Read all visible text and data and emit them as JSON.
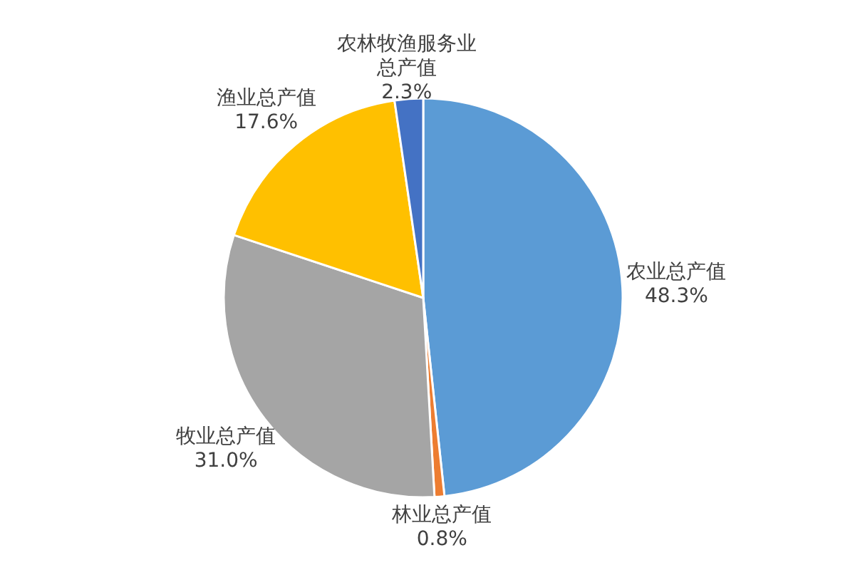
{
  "chart_data": {
    "type": "pie",
    "categories": [
      "农业总产值",
      "林业总产值",
      "牧业总产值",
      "渔业总产值",
      "农林牧渔服务业总产值"
    ],
    "values": [
      48.3,
      0.8,
      31.0,
      17.6,
      2.3
    ],
    "value_labels": [
      "48.3%",
      "0.8%",
      "31.0%",
      "17.6%",
      "2.3%"
    ],
    "colors": [
      "#5b9bd5",
      "#ed7d31",
      "#a5a5a5",
      "#ffc000",
      "#4472c4"
    ],
    "legend": false
  }
}
